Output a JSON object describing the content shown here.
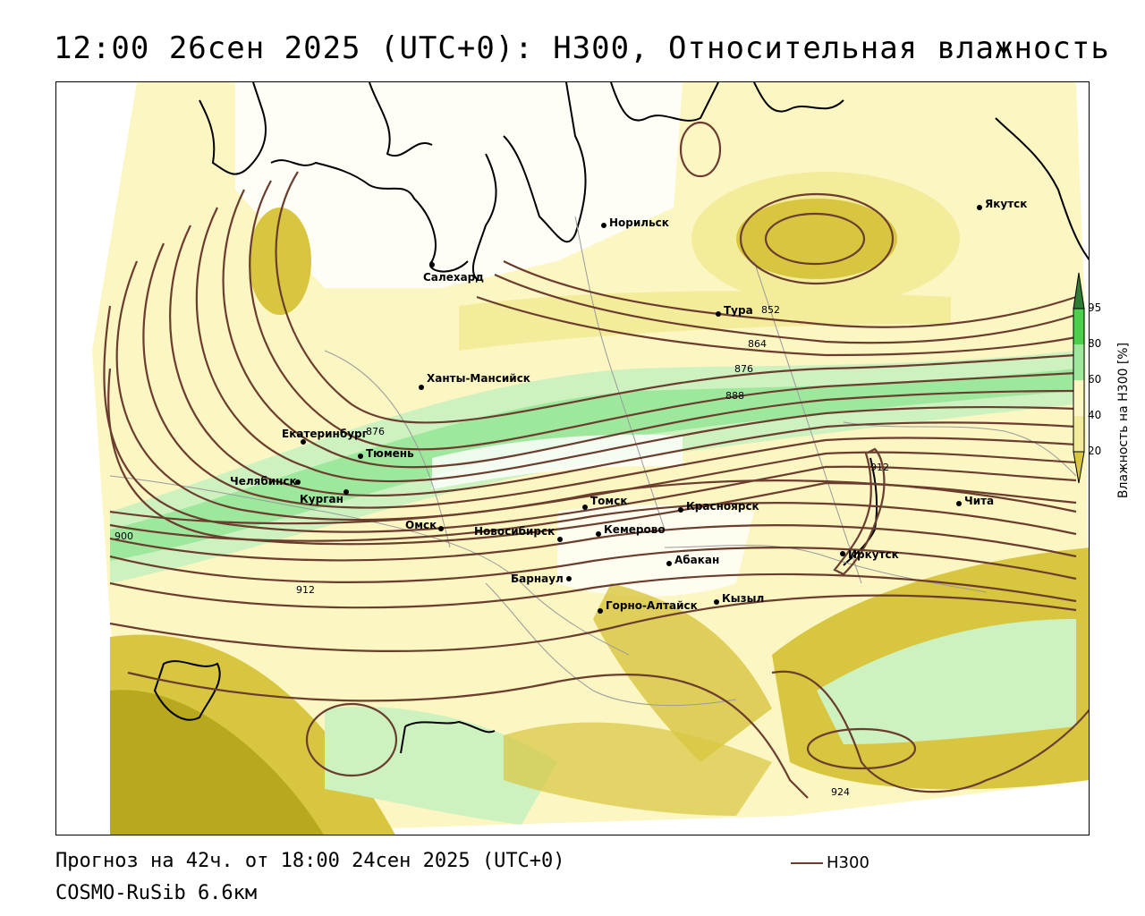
{
  "title": "12:00 26сен 2025 (UTC+0): H300, Относительная влажность",
  "footer": {
    "forecast": "Прогноз на 42ч. от 18:00 24сен 2025 (UTC+0)",
    "model": "COSMO-RuSib 6.6км",
    "line_legend": "H300"
  },
  "legend": {
    "title": "Влажность на H300 [%]",
    "ticks": [
      "95",
      "80",
      "60",
      "40",
      "20"
    ],
    "colors": [
      "#2e7d32",
      "#4cd04c",
      "#9ee89e",
      "#cdf2c0",
      "#fbf6c2",
      "#f3ec9a",
      "#d8c640",
      "#b8a81e"
    ]
  },
  "colors": {
    "contour": "#6b3d2e",
    "coast": "#000000",
    "boundary": "#9a9a9a"
  },
  "cities": [
    {
      "name": "Якутск"
    },
    {
      "name": "Норильск"
    },
    {
      "name": "Салехард"
    },
    {
      "name": "Тура"
    },
    {
      "name": "Ханты-Мансийск"
    },
    {
      "name": "Екатеринбург"
    },
    {
      "name": "Тюмень"
    },
    {
      "name": "Челябинск"
    },
    {
      "name": "Курган"
    },
    {
      "name": "Омск"
    },
    {
      "name": "Новосибирск"
    },
    {
      "name": "Томск"
    },
    {
      "name": "Кемерово"
    },
    {
      "name": "Красноярск"
    },
    {
      "name": "Барнаул"
    },
    {
      "name": "Абакан"
    },
    {
      "name": "Горно-Алтайск"
    },
    {
      "name": "Кызыл"
    },
    {
      "name": "Иркутск"
    },
    {
      "name": "Чита"
    }
  ],
  "contour_labels": [
    "852",
    "864",
    "876",
    "888",
    "876",
    "900",
    "912",
    "912",
    "924"
  ]
}
